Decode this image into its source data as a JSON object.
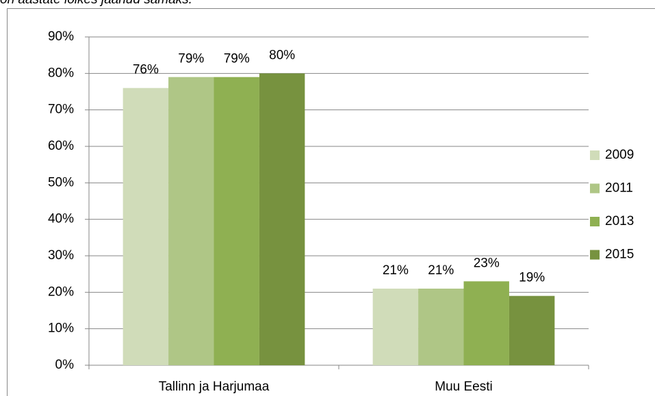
{
  "caption": "on aastate lõikes jäänud samaks.",
  "chart_data": {
    "type": "bar",
    "categories": [
      "Tallinn ja Harjumaa",
      "Muu Eesti"
    ],
    "series": [
      {
        "name": "2009",
        "color": "#d0dcb9",
        "values": [
          76,
          21
        ],
        "value_labels": [
          "76%",
          "21%"
        ]
      },
      {
        "name": "2011",
        "color": "#afc686",
        "values": [
          79,
          21
        ],
        "value_labels": [
          "79%",
          "21%"
        ]
      },
      {
        "name": "2013",
        "color": "#8fb052",
        "values": [
          79,
          23
        ],
        "value_labels": [
          "79%",
          "23%"
        ]
      },
      {
        "name": "2015",
        "color": "#77923f",
        "values": [
          80,
          19
        ],
        "value_labels": [
          "80%",
          "19%"
        ]
      }
    ],
    "ylim": [
      0,
      90
    ],
    "yticks": [
      {
        "value": 0,
        "label": "0%"
      },
      {
        "value": 10,
        "label": "10%"
      },
      {
        "value": 20,
        "label": "20%"
      },
      {
        "value": 30,
        "label": "30%"
      },
      {
        "value": 40,
        "label": "40%"
      },
      {
        "value": 50,
        "label": "50%"
      },
      {
        "value": 60,
        "label": "60%"
      },
      {
        "value": 70,
        "label": "70%"
      },
      {
        "value": 80,
        "label": "80%"
      },
      {
        "value": 90,
        "label": "90%"
      }
    ],
    "grid": true,
    "legend": "right"
  }
}
